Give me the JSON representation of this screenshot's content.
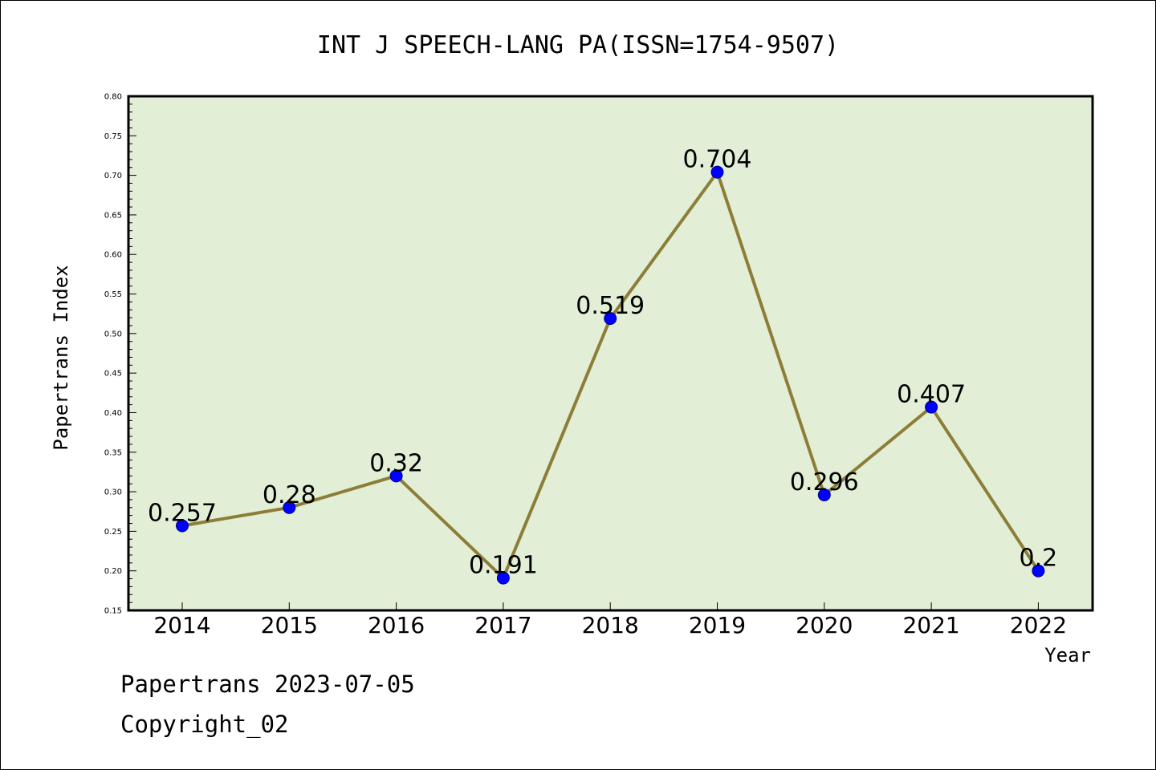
{
  "chart_data": {
    "type": "line",
    "title": "INT J SPEECH-LANG PA(ISSN=1754-9507)",
    "xlabel": "Year",
    "ylabel": "Papertrans Index",
    "categories": [
      "2014",
      "2015",
      "2016",
      "2017",
      "2018",
      "2019",
      "2020",
      "2021",
      "2022"
    ],
    "values": [
      0.257,
      0.28,
      0.32,
      0.191,
      0.519,
      0.704,
      0.296,
      0.407,
      0.2
    ],
    "data_labels": [
      "0.257",
      "0.28",
      "0.32",
      "0.191",
      "0.519",
      "0.704",
      "0.296",
      "0.407",
      "0.2"
    ],
    "ylim": [
      0.15,
      0.8
    ],
    "yticks": [
      "0.15",
      "0.20",
      "0.25",
      "0.30",
      "0.35",
      "0.40",
      "0.45",
      "0.50",
      "0.55",
      "0.60",
      "0.65",
      "0.70",
      "0.75",
      "0.80"
    ],
    "grid": false,
    "legend": "none",
    "colors": {
      "plot_background": "#e2efd6",
      "line": "#8c7e38",
      "marker": "#0000ff",
      "marker_edge": "#00008b"
    }
  },
  "footer": {
    "line1": "Papertrans 2023-07-05",
    "line2": "Copyright_02"
  }
}
